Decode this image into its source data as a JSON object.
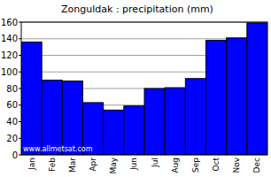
{
  "chart_data": {
    "type": "bar",
    "title": "Zonguldak : precipitation (mm)",
    "categories": [
      "Jan",
      "Feb",
      "Mar",
      "Apr",
      "May",
      "Jun",
      "Jul",
      "Aug",
      "Sep",
      "Oct",
      "Nov",
      "Dec"
    ],
    "values": [
      136,
      90,
      89,
      63,
      54,
      59,
      80,
      81,
      92,
      138,
      141,
      159
    ],
    "color": "#0000ff",
    "ylim": [
      0,
      160
    ],
    "yticks": [
      0,
      20,
      40,
      60,
      80,
      100,
      120,
      140,
      160
    ],
    "grid": true,
    "annotations": [
      "www.allmetsat.com"
    ]
  }
}
